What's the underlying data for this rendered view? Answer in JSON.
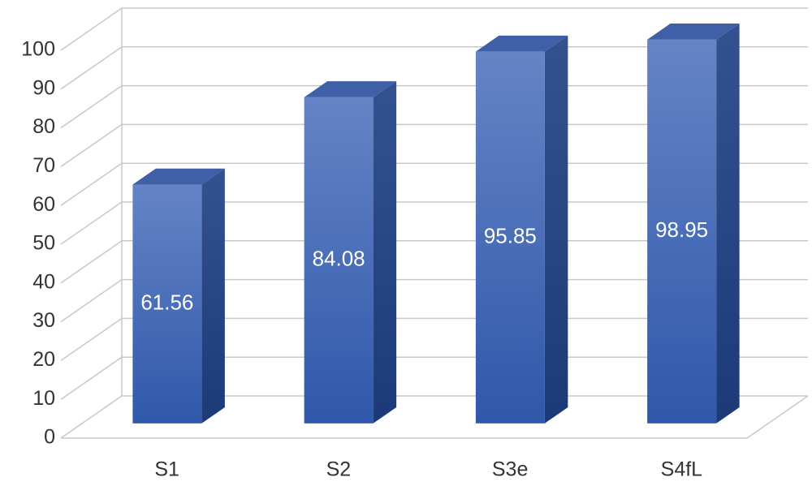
{
  "chart_data": {
    "type": "bar3d",
    "categories": [
      "S1",
      "S2",
      "S3e",
      "S4fL"
    ],
    "values": [
      61.56,
      84.08,
      95.85,
      98.95
    ],
    "color": "#4a6cb8",
    "ylim": [
      0,
      100
    ],
    "yticks": [
      0,
      10,
      20,
      30,
      40,
      50,
      60,
      70,
      80,
      90,
      100
    ],
    "grid": true
  }
}
